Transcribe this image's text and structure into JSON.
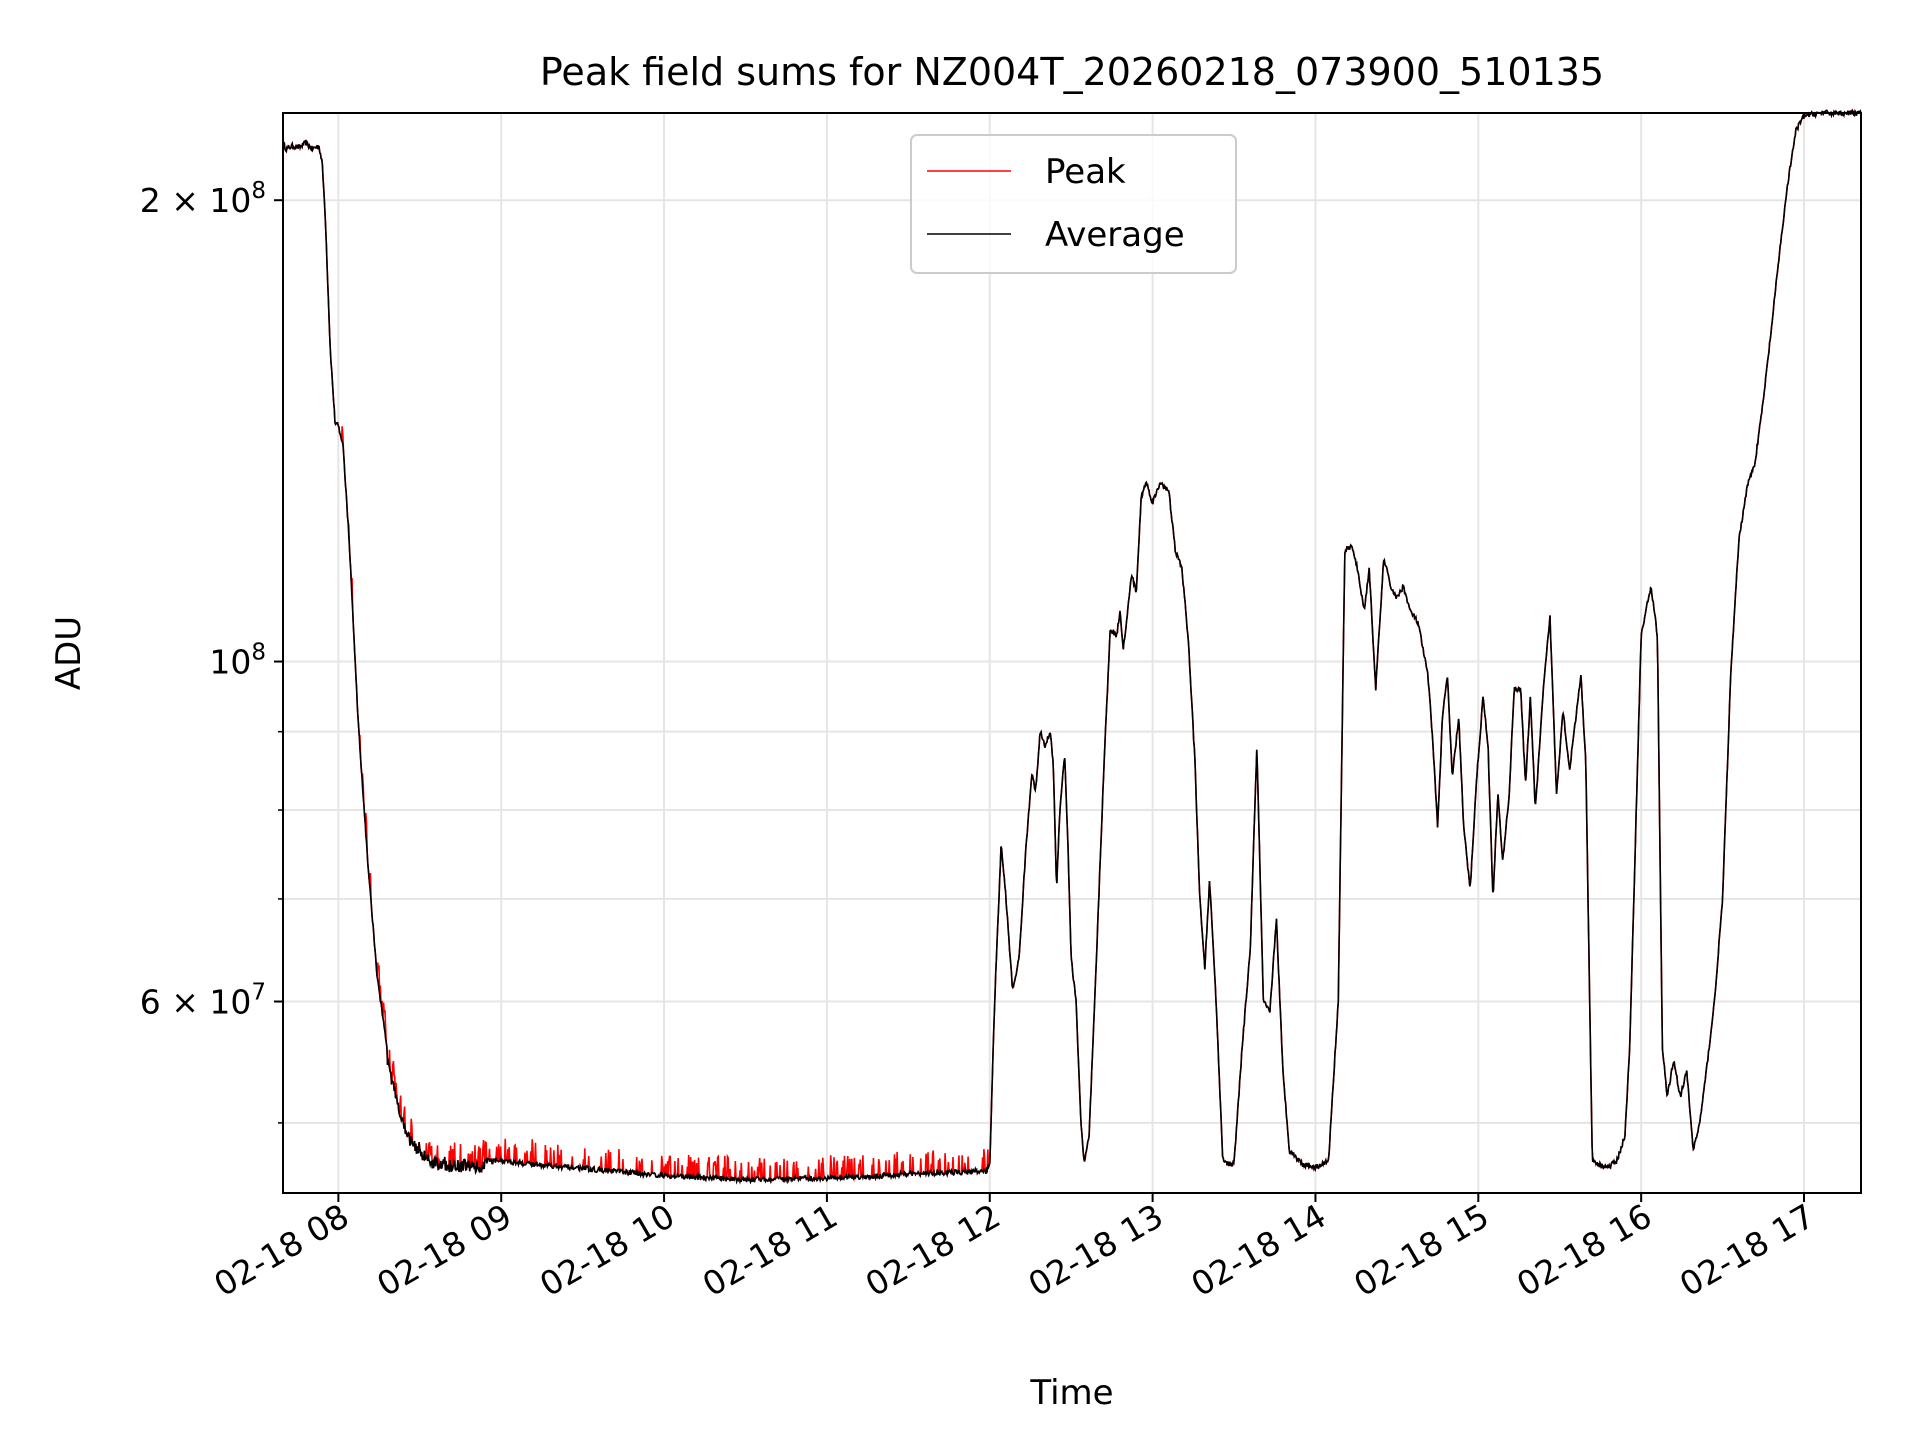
{
  "chart_data": {
    "type": "line",
    "title": "Peak field sums for NZ004T_20260218_073900_510135",
    "xlabel": "Time",
    "ylabel": "ADU",
    "x_unit": "hours since 02-18 00:00",
    "xlim": [
      7.66,
      17.35
    ],
    "ylim": [
      45000000,
      228000000
    ],
    "yscale": "log",
    "grid": true,
    "legend_position": "upper center",
    "x_ticks": [
      {
        "value": 8,
        "label": "02-18 08"
      },
      {
        "value": 9,
        "label": "02-18 09"
      },
      {
        "value": 10,
        "label": "02-18 10"
      },
      {
        "value": 11,
        "label": "02-18 11"
      },
      {
        "value": 12,
        "label": "02-18 12"
      },
      {
        "value": 13,
        "label": "02-18 13"
      },
      {
        "value": 14,
        "label": "02-18 14"
      },
      {
        "value": 15,
        "label": "02-18 15"
      },
      {
        "value": 16,
        "label": "02-18 16"
      },
      {
        "value": 17,
        "label": "02-18 17"
      }
    ],
    "y_major_ticks": [
      {
        "value": 60000000,
        "mantissa": "6",
        "base": "10",
        "exp": "7"
      },
      {
        "value": 100000000,
        "mantissa": "",
        "base": "10",
        "exp": "8"
      },
      {
        "value": 200000000,
        "mantissa": "2",
        "base": "10",
        "exp": "8"
      }
    ],
    "y_minor_ticks": [
      50000000,
      70000000,
      80000000,
      90000000
    ],
    "series": [
      {
        "name": "Peak",
        "color": "#ff0000",
        "spikes_interval": [
          8.0,
          12.0
        ],
        "spike_extra_fraction": 0.035
      },
      {
        "name": "Average",
        "color": "#000000"
      }
    ],
    "average_points": [
      [
        7.66,
        218000000
      ],
      [
        7.68,
        216000000
      ],
      [
        7.72,
        217000000
      ],
      [
        7.76,
        216500000
      ],
      [
        7.8,
        218000000
      ],
      [
        7.84,
        216000000
      ],
      [
        7.88,
        217000000
      ],
      [
        7.9,
        212000000
      ],
      [
        7.92,
        195000000
      ],
      [
        7.95,
        160000000
      ],
      [
        7.98,
        143000000
      ],
      [
        8.0,
        142500000
      ],
      [
        8.03,
        138000000
      ],
      [
        8.07,
        118000000
      ],
      [
        8.12,
        92000000
      ],
      [
        8.18,
        74000000
      ],
      [
        8.24,
        62000000
      ],
      [
        8.32,
        54000000
      ],
      [
        8.42,
        49500000
      ],
      [
        8.55,
        47700000
      ],
      [
        8.7,
        47300000
      ],
      [
        9.0,
        47200000
      ],
      [
        9.5,
        46700000
      ],
      [
        10.0,
        46200000
      ],
      [
        10.5,
        45900000
      ],
      [
        11.0,
        46000000
      ],
      [
        11.5,
        46300000
      ],
      [
        11.98,
        46500000
      ],
      [
        12.0,
        47000000
      ],
      [
        12.03,
        60000000
      ],
      [
        12.07,
        76000000
      ],
      [
        12.1,
        70000000
      ],
      [
        12.14,
        61000000
      ],
      [
        12.18,
        64000000
      ],
      [
        12.22,
        75000000
      ],
      [
        12.26,
        85000000
      ],
      [
        12.28,
        82000000
      ],
      [
        12.31,
        90000000
      ],
      [
        12.34,
        88000000
      ],
      [
        12.37,
        90000000
      ],
      [
        12.39,
        86000000
      ],
      [
        12.41,
        71000000
      ],
      [
        12.43,
        80000000
      ],
      [
        12.46,
        87000000
      ],
      [
        12.48,
        76000000
      ],
      [
        12.5,
        64000000
      ],
      [
        12.53,
        60000000
      ],
      [
        12.56,
        50000000
      ],
      [
        12.58,
        47000000
      ],
      [
        12.61,
        49000000
      ],
      [
        12.65,
        62000000
      ],
      [
        12.7,
        85000000
      ],
      [
        12.74,
        105000000
      ],
      [
        12.78,
        104000000
      ],
      [
        12.8,
        108000000
      ],
      [
        12.82,
        102000000
      ],
      [
        12.84,
        106000000
      ],
      [
        12.87,
        114000000
      ],
      [
        12.9,
        111000000
      ],
      [
        12.93,
        128000000
      ],
      [
        12.96,
        131000000
      ],
      [
        13.0,
        127000000
      ],
      [
        13.05,
        131000000
      ],
      [
        13.1,
        129000000
      ],
      [
        13.14,
        118000000
      ],
      [
        13.18,
        115000000
      ],
      [
        13.22,
        103000000
      ],
      [
        13.26,
        86000000
      ],
      [
        13.29,
        70000000
      ],
      [
        13.32,
        63000000
      ],
      [
        13.35,
        72000000
      ],
      [
        13.39,
        60000000
      ],
      [
        13.43,
        47500000
      ],
      [
        13.46,
        47000000
      ],
      [
        13.5,
        47000000
      ],
      [
        13.55,
        56000000
      ],
      [
        13.6,
        65000000
      ],
      [
        13.64,
        88000000
      ],
      [
        13.68,
        60000000
      ],
      [
        13.72,
        59000000
      ],
      [
        13.76,
        68000000
      ],
      [
        13.8,
        54000000
      ],
      [
        13.84,
        48000000
      ],
      [
        13.92,
        47000000
      ],
      [
        14.0,
        46800000
      ],
      [
        14.08,
        47200000
      ],
      [
        14.14,
        60000000
      ],
      [
        14.18,
        118000000
      ],
      [
        14.22,
        119000000
      ],
      [
        14.25,
        116000000
      ],
      [
        14.3,
        108000000
      ],
      [
        14.33,
        115000000
      ],
      [
        14.37,
        96000000
      ],
      [
        14.42,
        117000000
      ],
      [
        14.46,
        112000000
      ],
      [
        14.5,
        110000000
      ],
      [
        14.54,
        112000000
      ],
      [
        14.58,
        108000000
      ],
      [
        14.63,
        106000000
      ],
      [
        14.69,
        98000000
      ],
      [
        14.72,
        89000000
      ],
      [
        14.75,
        78000000
      ],
      [
        14.78,
        92000000
      ],
      [
        14.81,
        98000000
      ],
      [
        14.84,
        84000000
      ],
      [
        14.88,
        92000000
      ],
      [
        14.91,
        78000000
      ],
      [
        14.95,
        71000000
      ],
      [
        14.99,
        84000000
      ],
      [
        15.03,
        95000000
      ],
      [
        15.06,
        88000000
      ],
      [
        15.09,
        70000000
      ],
      [
        15.12,
        82000000
      ],
      [
        15.15,
        74000000
      ],
      [
        15.19,
        82000000
      ],
      [
        15.22,
        96000000
      ],
      [
        15.26,
        96000000
      ],
      [
        15.29,
        83000000
      ],
      [
        15.32,
        95000000
      ],
      [
        15.35,
        80000000
      ],
      [
        15.4,
        96000000
      ],
      [
        15.44,
        107000000
      ],
      [
        15.48,
        82000000
      ],
      [
        15.52,
        93000000
      ],
      [
        15.56,
        85000000
      ],
      [
        15.6,
        92000000
      ],
      [
        15.63,
        98000000
      ],
      [
        15.66,
        86000000
      ],
      [
        15.7,
        47200000
      ],
      [
        15.75,
        46900000
      ],
      [
        15.8,
        46800000
      ],
      [
        15.85,
        47200000
      ],
      [
        15.9,
        49000000
      ],
      [
        15.93,
        56000000
      ],
      [
        15.97,
        80000000
      ],
      [
        16.0,
        104000000
      ],
      [
        16.03,
        108000000
      ],
      [
        16.06,
        112000000
      ],
      [
        16.1,
        104000000
      ],
      [
        16.13,
        56000000
      ],
      [
        16.16,
        52000000
      ],
      [
        16.2,
        55000000
      ],
      [
        16.24,
        52000000
      ],
      [
        16.28,
        54000000
      ],
      [
        16.32,
        48000000
      ],
      [
        16.36,
        50000000
      ],
      [
        16.4,
        54000000
      ],
      [
        16.45,
        60000000
      ],
      [
        16.5,
        70000000
      ],
      [
        16.55,
        98000000
      ],
      [
        16.6,
        120000000
      ],
      [
        16.65,
        130000000
      ],
      [
        16.7,
        135000000
      ],
      [
        16.75,
        148000000
      ],
      [
        16.8,
        165000000
      ],
      [
        16.85,
        185000000
      ],
      [
        16.9,
        205000000
      ],
      [
        16.95,
        222000000
      ],
      [
        17.0,
        227000000
      ],
      [
        17.1,
        228000000
      ],
      [
        17.35,
        228000000
      ]
    ]
  }
}
